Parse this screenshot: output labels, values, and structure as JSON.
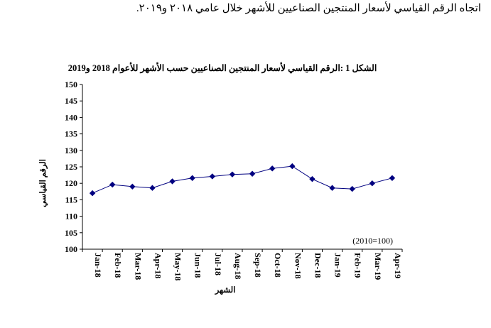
{
  "page": {
    "heading": "اتجاه الرقم القياسي لأسعار المنتجين الصناعيين للأشهر خلال عامي ٢٠١٨ و٢٠١٩."
  },
  "chart_data": {
    "type": "line",
    "title": "الشكل 1 :الرقم القياسي لأسعار المنتجين الصناعيين حسب الأشهر للأعوام 2018 و2019",
    "xlabel": "الشهر",
    "ylabel": "الرقم القياسي",
    "note": "(2010=100)",
    "ylim": [
      100,
      150
    ],
    "yticks": [
      "100",
      "105",
      "110",
      "115",
      "120",
      "125",
      "130",
      "135",
      "140",
      "145",
      "150"
    ],
    "grid": false,
    "line_color": "#000080",
    "categories": [
      "Jan-18",
      "Feb-18",
      "Mar-18",
      "Apr-18",
      "May-18",
      "Jun-18",
      "Jul-18",
      "Aug-18",
      "Sep-18",
      "Oct-18",
      "Nov-18",
      "Dec-18",
      "Jan-19",
      "Feb-19",
      "Mar-19",
      "Apr-19"
    ],
    "values": [
      117.0,
      119.6,
      119.0,
      118.6,
      120.6,
      121.6,
      122.1,
      122.7,
      122.9,
      124.5,
      125.2,
      121.3,
      118.6,
      118.3,
      120.0,
      121.6
    ]
  }
}
